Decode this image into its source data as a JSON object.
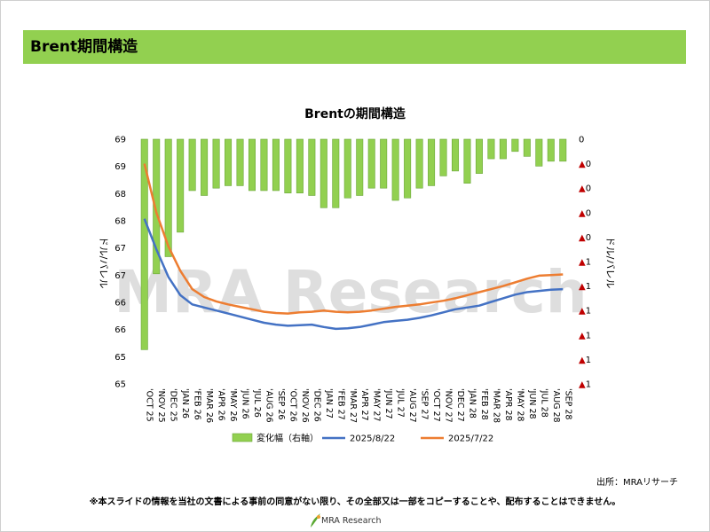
{
  "header": {
    "title": "Brent期間構造"
  },
  "source": "出所：MRAリサーチ",
  "disclaimer": "※本スライドの情報を当社の文書による事前の同意がない限り、その全部又は一部をコピーすることや、配布することはできません。",
  "logo": {
    "text": "MRA Research"
  },
  "watermark": "MRA Research",
  "colors": {
    "bar": "#92d050",
    "bar_edge": "#6aa638",
    "line_aug": "#4472c4",
    "line_jul": "#ed7d31",
    "header": "#92d050",
    "neg_marker": "#c00000"
  },
  "chart_data": {
    "type": "bar+line",
    "title": "Brentの期間構造",
    "ylabel": "ドル/バレル",
    "y2label": "ドル/バレル",
    "ylim": [
      65,
      69
    ],
    "y2lim": [
      -1,
      0
    ],
    "yticks": [
      "69",
      "69",
      "68",
      "68",
      "67",
      "67",
      "66",
      "66",
      "65",
      "65"
    ],
    "y2ticks": [
      "0",
      "▲0",
      "▲0",
      "▲0",
      "▲0",
      "▲1",
      "▲1",
      "▲1",
      "▲1",
      "▲1",
      "▲1"
    ],
    "categories": [
      "'OCT 25",
      "'NOV 25",
      "'DEC 25",
      "'JAN 26",
      "'FEB 26",
      "'MAR 26",
      "'APR 26",
      "'MAY 26",
      "'JUN 26",
      "'JUL 26",
      "'AUG 26",
      "'SEP 26",
      "'OCT 26",
      "'NOV 26",
      "'DEC 26",
      "'JAN 27",
      "'FEB 27",
      "'MAR 27",
      "'APR 27",
      "'MAY 27",
      "'JUN 27",
      "'JUL 27",
      "'AUG 27",
      "'SEP 27",
      "'OCT 27",
      "'NOV 27",
      "'DEC 27",
      "'JAN 28",
      "'FEB 28",
      "'MAR 28",
      "'APR 28",
      "'MAY 28",
      "'JUN 28",
      "'JUL 28",
      "'AUG 28",
      "'SEP 28"
    ],
    "legend": [
      "変化幅（右軸）",
      "2025/8/22",
      "2025/7/22"
    ],
    "series": [
      {
        "name": "変化幅（右軸）",
        "axis": "right",
        "type": "bar",
        "values": [
          -0.86,
          -0.55,
          -0.48,
          -0.38,
          -0.21,
          -0.23,
          -0.2,
          -0.19,
          -0.19,
          -0.21,
          -0.21,
          -0.21,
          -0.22,
          -0.22,
          -0.23,
          -0.28,
          -0.28,
          -0.24,
          -0.23,
          -0.2,
          -0.2,
          -0.25,
          -0.24,
          -0.2,
          -0.19,
          -0.15,
          -0.13,
          -0.18,
          -0.14,
          -0.08,
          -0.08,
          -0.05,
          -0.07,
          -0.11,
          -0.09,
          -0.09
        ]
      },
      {
        "name": "2025/8/22",
        "axis": "left",
        "type": "line",
        "values": [
          67.7,
          67.2,
          66.75,
          66.45,
          66.3,
          66.25,
          66.2,
          66.15,
          66.1,
          66.05,
          66.0,
          65.97,
          65.95,
          65.96,
          65.97,
          65.93,
          65.9,
          65.91,
          65.93,
          65.97,
          66.01,
          66.03,
          66.05,
          66.08,
          66.12,
          66.17,
          66.22,
          66.25,
          66.28,
          66.34,
          66.4,
          66.46,
          66.5,
          66.52,
          66.54,
          66.55
        ]
      },
      {
        "name": "2025/7/22",
        "axis": "left",
        "type": "line",
        "values": [
          68.6,
          67.8,
          67.25,
          66.85,
          66.55,
          66.42,
          66.35,
          66.3,
          66.26,
          66.22,
          66.18,
          66.16,
          66.15,
          66.17,
          66.18,
          66.2,
          66.18,
          66.17,
          66.18,
          66.2,
          66.23,
          66.26,
          66.28,
          66.3,
          66.33,
          66.36,
          66.4,
          66.45,
          66.5,
          66.55,
          66.6,
          66.66,
          66.72,
          66.77,
          66.78,
          66.79
        ]
      }
    ]
  }
}
